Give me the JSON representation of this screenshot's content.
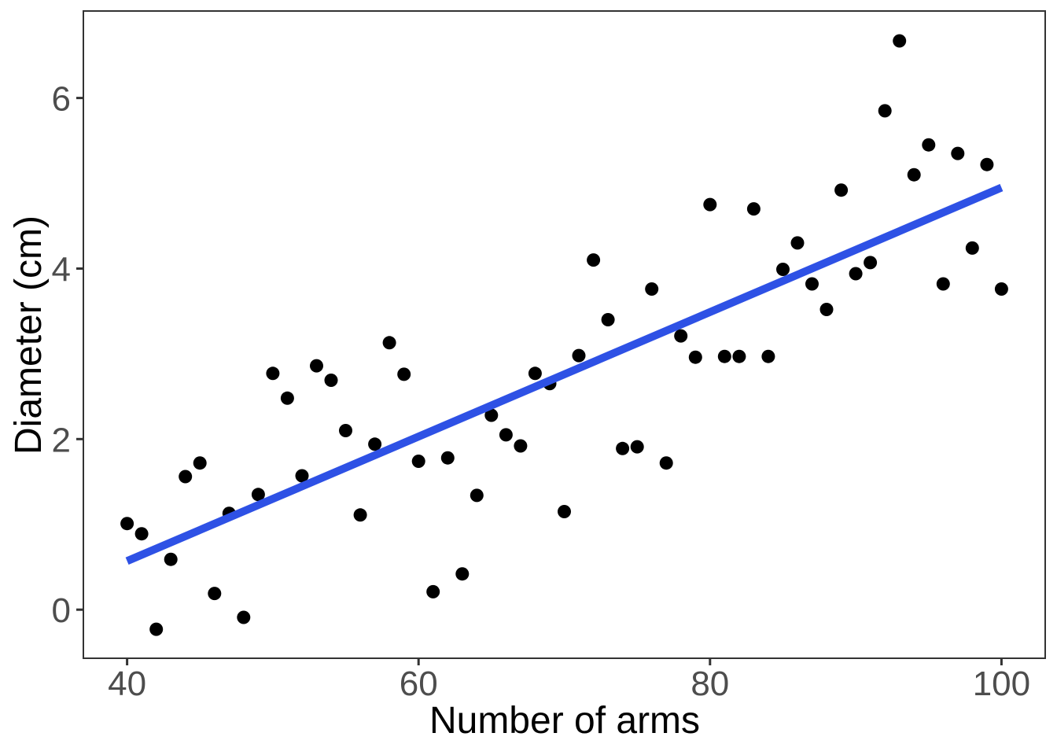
{
  "chart_data": {
    "type": "scatter",
    "title": "",
    "xlabel": "Number of arms",
    "ylabel": "Diameter (cm)",
    "xlim": [
      37,
      103
    ],
    "ylim": [
      -0.57,
      7.02
    ],
    "x_ticks": [
      40,
      60,
      80,
      100
    ],
    "y_ticks": [
      0,
      2,
      4,
      6
    ],
    "grid": false,
    "legend": false,
    "point_color": "#000000",
    "point_radius": 8.5,
    "colors": {
      "background": "#FFFFFF",
      "panel_border": "#333333",
      "tick_mark": "#333333",
      "tick_label": "#4D4D4D",
      "axis_title": "#000000",
      "trend_line": "#2E51E5",
      "point": "#000000"
    },
    "trend_line": {
      "kind": "linear-fit",
      "x_start": 40,
      "y_start": 0.57,
      "x_end": 100,
      "y_end": 4.95,
      "color": "#2E51E5",
      "stroke_width": 10
    },
    "points": [
      [
        40,
        1.01
      ],
      [
        41,
        0.89
      ],
      [
        42,
        -0.23
      ],
      [
        43,
        0.59
      ],
      [
        44,
        1.56
      ],
      [
        45,
        1.72
      ],
      [
        46,
        0.19
      ],
      [
        47,
        1.13
      ],
      [
        48,
        -0.09
      ],
      [
        49,
        1.35
      ],
      [
        50,
        2.77
      ],
      [
        51,
        2.48
      ],
      [
        52,
        1.57
      ],
      [
        53,
        2.86
      ],
      [
        54,
        2.69
      ],
      [
        55,
        2.1
      ],
      [
        56,
        1.11
      ],
      [
        57,
        1.94
      ],
      [
        58,
        3.13
      ],
      [
        59,
        2.76
      ],
      [
        60,
        1.74
      ],
      [
        61,
        0.21
      ],
      [
        62,
        1.78
      ],
      [
        63,
        0.42
      ],
      [
        64,
        1.34
      ],
      [
        65,
        2.28
      ],
      [
        66,
        2.05
      ],
      [
        67,
        1.92
      ],
      [
        68,
        2.77
      ],
      [
        69,
        2.65
      ],
      [
        70,
        1.15
      ],
      [
        71,
        2.98
      ],
      [
        72,
        4.1
      ],
      [
        73,
        3.4
      ],
      [
        74,
        1.89
      ],
      [
        75,
        1.91
      ],
      [
        76,
        3.76
      ],
      [
        77,
        1.72
      ],
      [
        78,
        3.21
      ],
      [
        79,
        2.96
      ],
      [
        80,
        4.75
      ],
      [
        81,
        2.97
      ],
      [
        82,
        2.97
      ],
      [
        83,
        4.7
      ],
      [
        84,
        2.97
      ],
      [
        85,
        3.99
      ],
      [
        86,
        4.3
      ],
      [
        87,
        3.82
      ],
      [
        88,
        3.52
      ],
      [
        89,
        4.92
      ],
      [
        90,
        3.94
      ],
      [
        91,
        4.07
      ],
      [
        92,
        5.85
      ],
      [
        93,
        6.67
      ],
      [
        94,
        5.1
      ],
      [
        95,
        5.45
      ],
      [
        96,
        3.82
      ],
      [
        97,
        5.35
      ],
      [
        98,
        4.24
      ],
      [
        99,
        5.22
      ],
      [
        100,
        3.76
      ]
    ]
  }
}
